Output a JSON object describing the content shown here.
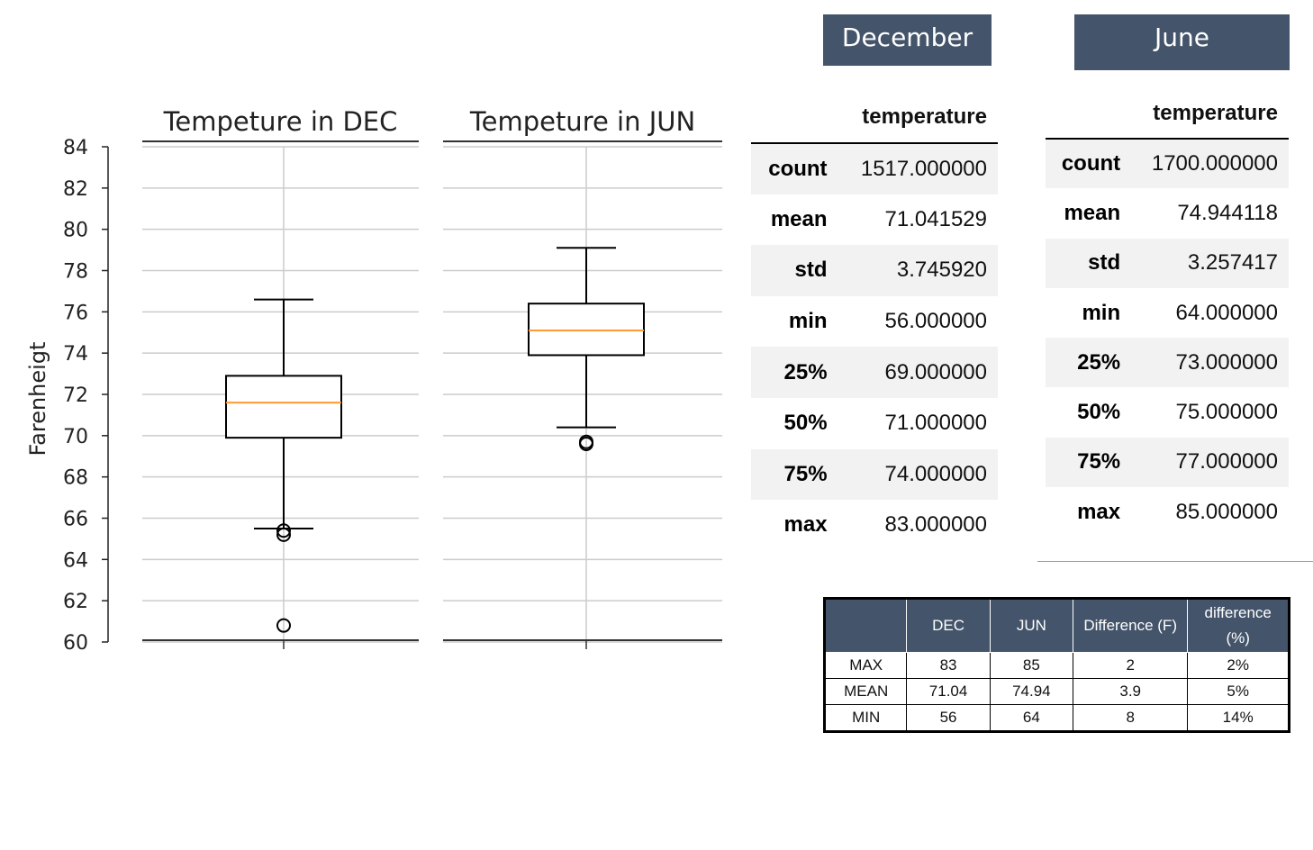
{
  "chart_data": [
    {
      "type": "box",
      "title": "Tempeture in DEC",
      "ylabel": "Farenheigt",
      "ylim": [
        60,
        84
      ],
      "yticks": [
        "60",
        "62",
        "64",
        "66",
        "68",
        "70",
        "72",
        "74",
        "76",
        "78",
        "80",
        "82",
        "84"
      ],
      "grid": true,
      "box": {
        "whisker_low": 65.5,
        "q1": 69.9,
        "median": 71.6,
        "q3": 72.9,
        "whisker_high": 76.6
      },
      "outliers": [
        65.2,
        65.4,
        60.8
      ],
      "colors": {
        "median": "#ff9933",
        "box": "#000000",
        "grid": "#cccccc"
      }
    },
    {
      "type": "box",
      "title": "Tempeture in JUN",
      "ylim": [
        60,
        84
      ],
      "grid": true,
      "box": {
        "whisker_low": 70.4,
        "q1": 73.9,
        "median": 75.1,
        "q3": 76.4,
        "whisker_high": 79.1
      },
      "outliers": [
        69.6,
        69.7
      ],
      "colors": {
        "median": "#ff9933",
        "box": "#000000",
        "grid": "#cccccc"
      }
    }
  ],
  "headers": {
    "december": "December",
    "june": "June"
  },
  "dec_stats": {
    "column": "temperature",
    "rows": [
      {
        "label": "count",
        "value": "1517.000000"
      },
      {
        "label": "mean",
        "value": "71.041529"
      },
      {
        "label": "std",
        "value": "3.745920"
      },
      {
        "label": "min",
        "value": "56.000000"
      },
      {
        "label": "25%",
        "value": "69.000000"
      },
      {
        "label": "50%",
        "value": "71.000000"
      },
      {
        "label": "75%",
        "value": "74.000000"
      },
      {
        "label": "max",
        "value": "83.000000"
      }
    ]
  },
  "jun_stats": {
    "column": "temperature",
    "rows": [
      {
        "label": "count",
        "value": "1700.000000"
      },
      {
        "label": "mean",
        "value": "74.944118"
      },
      {
        "label": "std",
        "value": "3.257417"
      },
      {
        "label": "min",
        "value": "64.000000"
      },
      {
        "label": "25%",
        "value": "73.000000"
      },
      {
        "label": "50%",
        "value": "75.000000"
      },
      {
        "label": "75%",
        "value": "77.000000"
      },
      {
        "label": "max",
        "value": "85.000000"
      }
    ]
  },
  "comparison": {
    "columns": [
      "",
      "DEC",
      "JUN",
      "Difference (F)",
      "difference (%)"
    ],
    "rows": [
      [
        "MAX",
        "83",
        "85",
        "2",
        "2%"
      ],
      [
        "MEAN",
        "71.04",
        "74.94",
        "3.9",
        "5%"
      ],
      [
        "MIN",
        "56",
        "64",
        "8",
        "14%"
      ]
    ],
    "header_color": "#44546a"
  }
}
